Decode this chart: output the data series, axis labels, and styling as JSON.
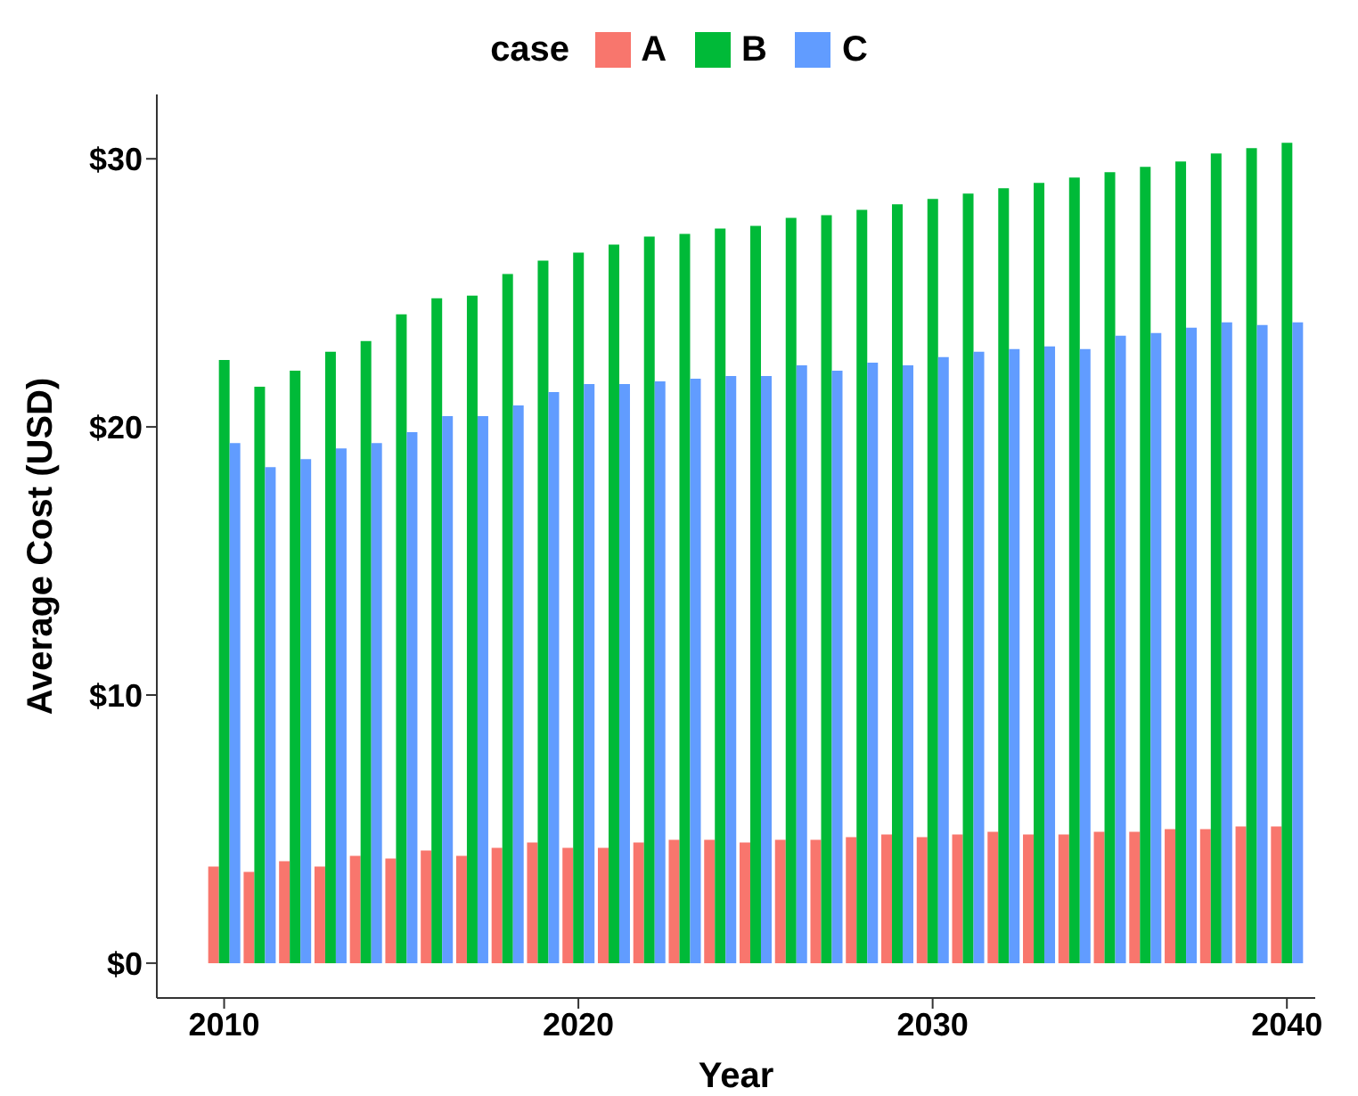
{
  "chart_data": {
    "type": "bar",
    "xlabel": "Year",
    "ylabel": "Average Cost (USD)",
    "legend_title": "case",
    "legend": "top",
    "x": [
      2010,
      2011,
      2012,
      2013,
      2014,
      2015,
      2016,
      2017,
      2018,
      2019,
      2020,
      2021,
      2022,
      2023,
      2024,
      2025,
      2026,
      2027,
      2028,
      2029,
      2030,
      2031,
      2032,
      2033,
      2034,
      2035,
      2036,
      2037,
      2038,
      2039,
      2040
    ],
    "series": [
      {
        "name": "A",
        "color": "#f8766d",
        "values": [
          3.6,
          3.4,
          3.8,
          3.6,
          4.0,
          3.9,
          4.2,
          4.0,
          4.3,
          4.5,
          4.3,
          4.3,
          4.5,
          4.6,
          4.6,
          4.5,
          4.6,
          4.6,
          4.7,
          4.8,
          4.7,
          4.8,
          4.9,
          4.8,
          4.8,
          4.9,
          4.9,
          5.0,
          5.0,
          5.1,
          5.1
        ]
      },
      {
        "name": "B",
        "color": "#00ba38",
        "values": [
          22.5,
          21.5,
          22.1,
          22.8,
          23.2,
          24.2,
          24.8,
          24.9,
          25.7,
          26.2,
          26.5,
          26.8,
          27.1,
          27.2,
          27.4,
          27.5,
          27.8,
          27.9,
          28.1,
          28.3,
          28.5,
          28.7,
          28.9,
          29.1,
          29.3,
          29.5,
          29.7,
          29.9,
          30.2,
          30.4,
          30.6
        ]
      },
      {
        "name": "C",
        "color": "#619cff",
        "values": [
          19.4,
          18.5,
          18.8,
          19.2,
          19.4,
          19.8,
          20.4,
          20.4,
          20.8,
          21.3,
          21.6,
          21.6,
          21.7,
          21.8,
          21.9,
          21.9,
          22.3,
          22.1,
          22.4,
          22.3,
          22.6,
          22.8,
          22.9,
          23.0,
          22.9,
          23.4,
          23.5,
          23.7,
          23.9,
          23.8,
          23.9
        ]
      }
    ],
    "xlim": [
      2008.1,
      2040.8
    ],
    "xticks": [
      2010,
      2020,
      2030,
      2040
    ],
    "ylim": [
      -1.3,
      32.4
    ],
    "yticks": [
      {
        "value": 0,
        "label": "$0"
      },
      {
        "value": 10,
        "label": "$10"
      },
      {
        "value": 20,
        "label": "$20"
      },
      {
        "value": 30,
        "label": "$30"
      }
    ],
    "grid": false
  }
}
